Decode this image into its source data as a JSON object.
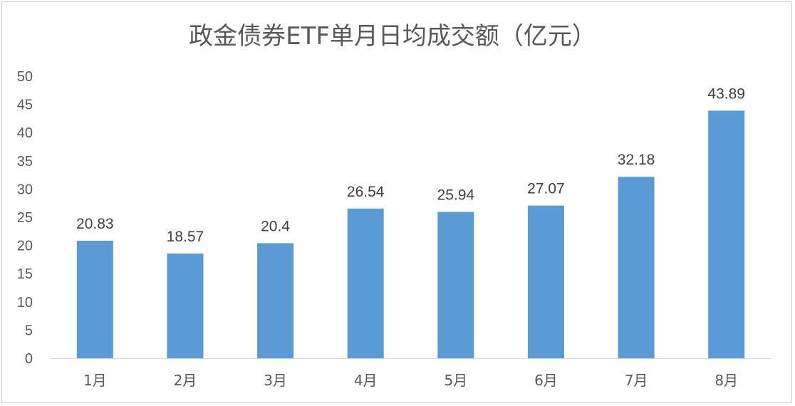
{
  "chart_data": {
    "type": "bar",
    "title": "政金债券ETF单月日均成交额（亿元）",
    "categories": [
      "1月",
      "2月",
      "3月",
      "4月",
      "5月",
      "6月",
      "7月",
      "8月"
    ],
    "values": [
      20.83,
      18.57,
      20.4,
      26.54,
      25.94,
      27.07,
      32.18,
      43.89
    ],
    "data_labels": [
      "20.83",
      "18.57",
      "20.4",
      "26.54",
      "25.94",
      "27.07",
      "32.18",
      "43.89"
    ],
    "y_ticks": [
      "0",
      "5",
      "10",
      "15",
      "20",
      "25",
      "30",
      "35",
      "40",
      "45",
      "50"
    ],
    "ylim": [
      0,
      50
    ],
    "grid": false,
    "legend": "none",
    "bar_color": "#5B9BD5",
    "axis_color": "#d9d9d9"
  }
}
